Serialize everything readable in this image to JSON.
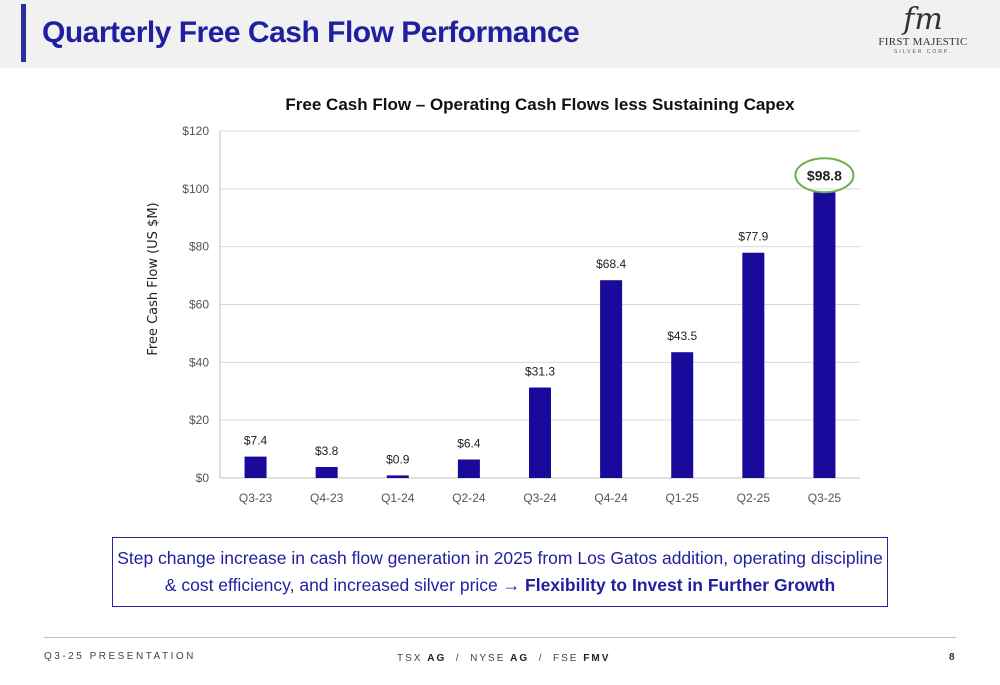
{
  "header": {
    "title": "Quarterly Free Cash Flow Performance",
    "logo_mark": "fm",
    "logo_name": "FIRST MAJESTIC",
    "logo_sub": "SILVER CORP."
  },
  "chart_data": {
    "type": "bar",
    "title": "Free Cash Flow – Operating Cash Flows less Sustaining Capex",
    "xlabel": "",
    "ylabel": "Free Cash Flow (US $M)",
    "categories": [
      "Q3-23",
      "Q4-23",
      "Q1-24",
      "Q2-24",
      "Q3-24",
      "Q4-24",
      "Q1-25",
      "Q2-25",
      "Q3-25"
    ],
    "values": [
      7.4,
      3.8,
      0.9,
      6.4,
      31.3,
      68.4,
      43.5,
      77.9,
      98.8
    ],
    "data_labels": [
      "$7.4",
      "$3.8",
      "$0.9",
      "$6.4",
      "$31.3",
      "$68.4",
      "$43.5",
      "$77.9",
      "$98.8"
    ],
    "ylim": [
      0,
      120
    ],
    "yticks": [
      0,
      20,
      40,
      60,
      80,
      100,
      120
    ],
    "ytick_labels": [
      "$0",
      "$20",
      "$40",
      "$60",
      "$80",
      "$100",
      "$120"
    ],
    "grid": true,
    "highlight_index": 8,
    "colors": {
      "bar": "#1a0a9c",
      "highlight_circle": "#6ab04c",
      "grid": "#d9d9d9"
    }
  },
  "callout": {
    "line1": "Step change increase in cash flow generation in 2025 from Los Gatos addition, operating discipline",
    "line2_prefix": "& cost efficiency, and increased silver price ",
    "arrow": "→",
    "line2_bold": "Flexibility to Invest in Further Growth"
  },
  "footer": {
    "left": "Q3-25 PRESENTATION",
    "tsx_prefix": "TSX ",
    "tsx": "AG",
    "nyse_prefix": "  /  NYSE ",
    "nyse": "AG",
    "fse_prefix": "  /  FSE ",
    "fse": "FMV",
    "page": "8"
  }
}
